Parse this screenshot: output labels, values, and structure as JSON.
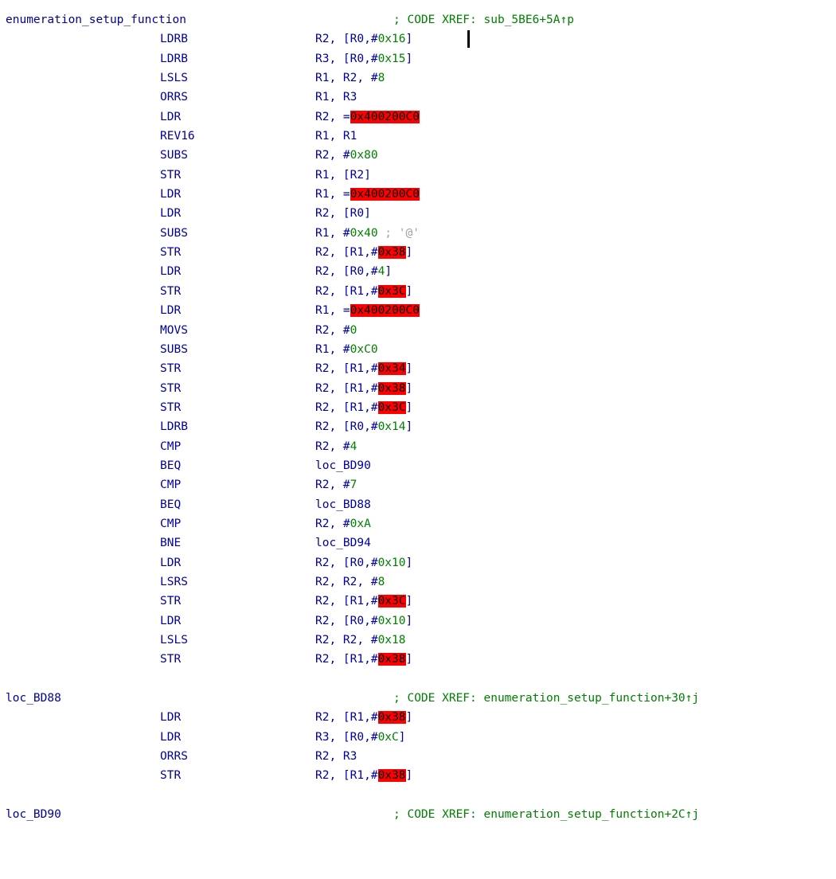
{
  "function": {
    "name": "enumeration_setup_function",
    "xref": "; CODE XREF: sub_5BE6+5A↑p"
  },
  "instructions": [
    {
      "mnemonic": "LDRB",
      "ops": [
        [
          "r",
          "R2, [R0,#"
        ],
        [
          "n",
          "0x16"
        ],
        [
          "r",
          "]"
        ]
      ]
    },
    {
      "mnemonic": "LDRB",
      "ops": [
        [
          "r",
          "R3, [R0,#"
        ],
        [
          "n",
          "0x15"
        ],
        [
          "r",
          "]"
        ]
      ]
    },
    {
      "mnemonic": "LSLS",
      "ops": [
        [
          "r",
          "R1, R2, #"
        ],
        [
          "n",
          "8"
        ]
      ]
    },
    {
      "mnemonic": "ORRS",
      "ops": [
        [
          "r",
          "R1, R3"
        ]
      ]
    },
    {
      "mnemonic": "LDR",
      "ops": [
        [
          "r",
          "R2, ="
        ],
        [
          "h",
          "0x400200C0"
        ]
      ]
    },
    {
      "mnemonic": "REV16",
      "ops": [
        [
          "r",
          "R1, R1"
        ]
      ]
    },
    {
      "mnemonic": "SUBS",
      "ops": [
        [
          "r",
          "R2, #"
        ],
        [
          "n",
          "0x80"
        ]
      ]
    },
    {
      "mnemonic": "STR",
      "ops": [
        [
          "r",
          "R1, [R2]"
        ]
      ]
    },
    {
      "mnemonic": "LDR",
      "ops": [
        [
          "r",
          "R1, ="
        ],
        [
          "h",
          "0x400200C0"
        ]
      ]
    },
    {
      "mnemonic": "LDR",
      "ops": [
        [
          "r",
          "R2, [R0]"
        ]
      ]
    },
    {
      "mnemonic": "SUBS",
      "ops": [
        [
          "r",
          "R1, #"
        ],
        [
          "n",
          "0x40"
        ],
        [
          "c",
          " ; '@'"
        ]
      ]
    },
    {
      "mnemonic": "STR",
      "ops": [
        [
          "r",
          "R2, [R1,#"
        ],
        [
          "h",
          "0x38"
        ],
        [
          "r",
          "]"
        ]
      ]
    },
    {
      "mnemonic": "LDR",
      "ops": [
        [
          "r",
          "R2, [R0,#"
        ],
        [
          "n",
          "4"
        ],
        [
          "r",
          "]"
        ]
      ]
    },
    {
      "mnemonic": "STR",
      "ops": [
        [
          "r",
          "R2, [R1,#"
        ],
        [
          "h",
          "0x3C"
        ],
        [
          "r",
          "]"
        ]
      ]
    },
    {
      "mnemonic": "LDR",
      "ops": [
        [
          "r",
          "R1, ="
        ],
        [
          "h",
          "0x400200C0"
        ]
      ]
    },
    {
      "mnemonic": "MOVS",
      "ops": [
        [
          "r",
          "R2, #"
        ],
        [
          "n",
          "0"
        ]
      ]
    },
    {
      "mnemonic": "SUBS",
      "ops": [
        [
          "r",
          "R1, #"
        ],
        [
          "n",
          "0xC0"
        ]
      ]
    },
    {
      "mnemonic": "STR",
      "ops": [
        [
          "r",
          "R2, [R1,#"
        ],
        [
          "h",
          "0x34"
        ],
        [
          "r",
          "]"
        ]
      ]
    },
    {
      "mnemonic": "STR",
      "ops": [
        [
          "r",
          "R2, [R1,#"
        ],
        [
          "h",
          "0x38"
        ],
        [
          "r",
          "]"
        ]
      ]
    },
    {
      "mnemonic": "STR",
      "ops": [
        [
          "r",
          "R2, [R1,#"
        ],
        [
          "h",
          "0x3C"
        ],
        [
          "r",
          "]"
        ]
      ]
    },
    {
      "mnemonic": "LDRB",
      "ops": [
        [
          "r",
          "R2, [R0,#"
        ],
        [
          "n",
          "0x14"
        ],
        [
          "r",
          "]"
        ]
      ]
    },
    {
      "mnemonic": "CMP",
      "ops": [
        [
          "r",
          "R2, #"
        ],
        [
          "n",
          "4"
        ]
      ]
    },
    {
      "mnemonic": "BEQ",
      "ops": [
        [
          "l",
          "loc_BD90"
        ]
      ]
    },
    {
      "mnemonic": "CMP",
      "ops": [
        [
          "r",
          "R2, #"
        ],
        [
          "n",
          "7"
        ]
      ]
    },
    {
      "mnemonic": "BEQ",
      "ops": [
        [
          "l",
          "loc_BD88"
        ]
      ]
    },
    {
      "mnemonic": "CMP",
      "ops": [
        [
          "r",
          "R2, #"
        ],
        [
          "n",
          "0xA"
        ]
      ]
    },
    {
      "mnemonic": "BNE",
      "ops": [
        [
          "l",
          "loc_BD94"
        ]
      ]
    },
    {
      "mnemonic": "LDR",
      "ops": [
        [
          "r",
          "R2, [R0,#"
        ],
        [
          "n",
          "0x10"
        ],
        [
          "r",
          "]"
        ]
      ]
    },
    {
      "mnemonic": "LSRS",
      "ops": [
        [
          "r",
          "R2, R2, #"
        ],
        [
          "n",
          "8"
        ]
      ]
    },
    {
      "mnemonic": "STR",
      "ops": [
        [
          "r",
          "R2, [R1,#"
        ],
        [
          "h",
          "0x3C"
        ],
        [
          "r",
          "]"
        ]
      ]
    },
    {
      "mnemonic": "LDR",
      "ops": [
        [
          "r",
          "R2, [R0,#"
        ],
        [
          "n",
          "0x10"
        ],
        [
          "r",
          "]"
        ]
      ]
    },
    {
      "mnemonic": "LSLS",
      "ops": [
        [
          "r",
          "R2, R2, #"
        ],
        [
          "n",
          "0x18"
        ]
      ]
    },
    {
      "mnemonic": "STR",
      "ops": [
        [
          "r",
          "R2, [R1,#"
        ],
        [
          "h",
          "0x38"
        ],
        [
          "r",
          "]"
        ]
      ]
    }
  ],
  "loc_BD88": {
    "name": "loc_BD88",
    "xref": "; CODE XREF: enumeration_setup_function+30↑j",
    "instructions": [
      {
        "mnemonic": "LDR",
        "ops": [
          [
            "r",
            "R2, [R1,#"
          ],
          [
            "h",
            "0x38"
          ],
          [
            "r",
            "]"
          ]
        ]
      },
      {
        "mnemonic": "LDR",
        "ops": [
          [
            "r",
            "R3, [R0,#"
          ],
          [
            "n",
            "0xC"
          ],
          [
            "r",
            "]"
          ]
        ]
      },
      {
        "mnemonic": "ORRS",
        "ops": [
          [
            "r",
            "R2, R3"
          ]
        ]
      },
      {
        "mnemonic": "STR",
        "ops": [
          [
            "r",
            "R2, [R1,#"
          ],
          [
            "h",
            "0x38"
          ],
          [
            "r",
            "]"
          ]
        ]
      }
    ]
  },
  "loc_BD90": {
    "name": "loc_BD90",
    "xref": "; CODE XREF: enumeration_setup_function+2C↑j"
  },
  "colors": {
    "keyword_blue": "#0000a0",
    "number_green": "#008000",
    "highlight_red": "#ff0000",
    "comment_gray": "#a0a0a0"
  }
}
